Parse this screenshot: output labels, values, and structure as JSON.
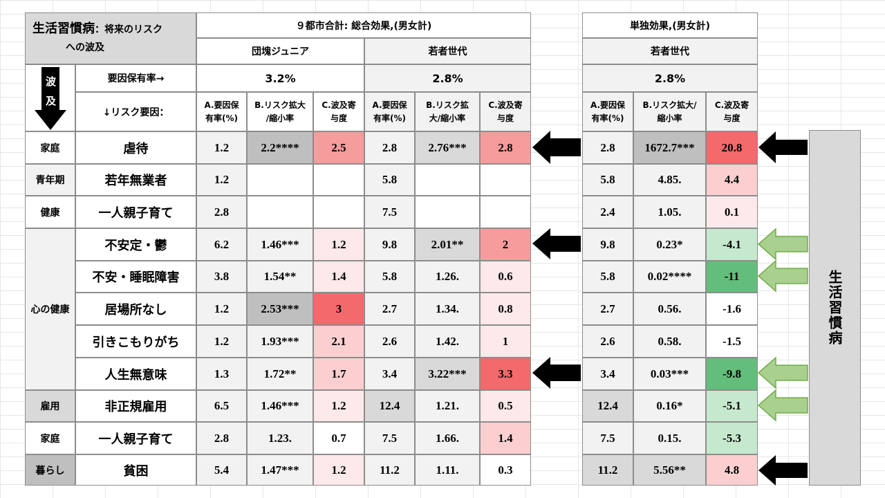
{
  "title_block": {
    "title_main": "生活習慣病",
    "title_rest": "：将来のリスク",
    "title_line2": "への波及"
  },
  "wave_label": {
    "char1": "波",
    "char2": "及"
  },
  "header": {
    "total_effect": "９都市合計: 総合効果,(男女計)",
    "single_effect": "単独効果,(男女計)",
    "group_dankai": "団塊ジュニア",
    "group_wakamono": "若者世代",
    "group_wakamono_single": "若者世代",
    "prevalence_label": "要因保有率→",
    "prevalence_dankai": "3.2%",
    "prevalence_wakamono": "2.8%",
    "prevalence_single": "2.8%",
    "risk_factor_label": "↓リスク要因：",
    "col_a_1": "A.要因保",
    "col_a_2": "有率(%)",
    "col_b_1": "B.リスク拡大",
    "col_b_2": "/縮小率",
    "col_c_1": "C.波及寄",
    "col_c_2": "与度",
    "col_a2_1": "A.要因保",
    "col_a2_2": "有率(%)",
    "col_b2_1": "B.リスク拡",
    "col_b2_2": "大/縮小率",
    "col_c2_1": "C.波及寄",
    "col_c2_2": "与度",
    "col_a3_1": "A.要因保",
    "col_a3_2": "有率(%)",
    "col_b3_1": "B.リスク拡大/",
    "col_b3_2": "縮小率",
    "col_c3_1": "C.波及寄",
    "col_c3_2": "与度"
  },
  "outcome_label": "生活習慣病",
  "categories": {
    "katei1": "家庭",
    "seinenki": "青年期",
    "kenko": "健康",
    "kokoro": "心の健康",
    "koyo": "雇用",
    "katei2": "家庭",
    "kurashi": "暮らし"
  },
  "rows": [
    {
      "factor": "虐待",
      "a1": "1.2",
      "b1": "2.2****",
      "c1": "2.5",
      "a2": "2.8",
      "b2": "2.76***",
      "c2": "2.8",
      "a3": "2.8",
      "b3": "1672.7***",
      "c3": "20.8"
    },
    {
      "factor": "若年無業者",
      "a1": "1.2",
      "b1": "",
      "c1": "",
      "a2": "5.8",
      "b2": "",
      "c2": "",
      "a3": "5.8",
      "b3": "4.85.",
      "c3": "4.4"
    },
    {
      "factor": "一人親子育て",
      "a1": "2.8",
      "b1": "",
      "c1": "",
      "a2": "7.5",
      "b2": "",
      "c2": "",
      "a3": "2.4",
      "b3": "1.05.",
      "c3": "0.1"
    },
    {
      "factor": "不安定・鬱",
      "a1": "6.2",
      "b1": "1.46***",
      "c1": "1.2",
      "a2": "9.8",
      "b2": "2.01**",
      "c2": "2",
      "a3": "9.8",
      "b3": "0.23*",
      "c3": "-4.1"
    },
    {
      "factor": "不安・睡眠障害",
      "a1": "3.8",
      "b1": "1.54**",
      "c1": "1.4",
      "a2": "5.8",
      "b2": "1.26.",
      "c2": "0.6",
      "a3": "5.8",
      "b3": "0.02****",
      "c3": "-11"
    },
    {
      "factor": "居場所なし",
      "a1": "1.2",
      "b1": "2.53***",
      "c1": "3",
      "a2": "2.7",
      "b2": "1.34.",
      "c2": "0.8",
      "a3": "2.7",
      "b3": "0.56.",
      "c3": "-1.6"
    },
    {
      "factor": "引きこもりがち",
      "a1": "1.2",
      "b1": "1.93***",
      "c1": "2.1",
      "a2": "2.6",
      "b2": "1.42.",
      "c2": "1",
      "a3": "2.6",
      "b3": "0.58.",
      "c3": "-1.5"
    },
    {
      "factor": "人生無意味",
      "a1": "1.3",
      "b1": "1.72**",
      "c1": "1.7",
      "a2": "3.4",
      "b2": "3.22***",
      "c2": "3.3",
      "a3": "3.4",
      "b3": "0.03***",
      "c3": "-9.8"
    },
    {
      "factor": "非正規雇用",
      "a1": "6.5",
      "b1": "1.46***",
      "c1": "1.2",
      "a2": "12.4",
      "b2": "1.21.",
      "c2": "0.5",
      "a3": "12.4",
      "b3": "0.16*",
      "c3": "-5.1"
    },
    {
      "factor": "一人親子育て",
      "a1": "2.8",
      "b1": "1.23.",
      "c1": "0.7",
      "a2": "7.5",
      "b2": "1.66.",
      "c2": "1.4",
      "a3": "7.5",
      "b3": "0.15.",
      "c3": "-5.3"
    },
    {
      "factor": "貧困",
      "a1": "5.4",
      "b1": "1.47***",
      "c1": "1.2",
      "a2": "11.2",
      "b2": "1.11.",
      "c2": "0.3",
      "a3": "11.2",
      "b3": "5.56**",
      "c3": "4.8"
    }
  ],
  "colors": {
    "red_strong": "#f4696b",
    "red_mid": "#f79c9c",
    "red_light": "#fbcfd0",
    "red_pale": "#fde9ea",
    "green_strong": "#63be7b",
    "green_light": "#c6e9ce",
    "green_pale": "#e6f5e9",
    "arrow_black": "#000000",
    "arrow_green": "#a9d08e",
    "arrow_green_border": "#70ad47"
  }
}
